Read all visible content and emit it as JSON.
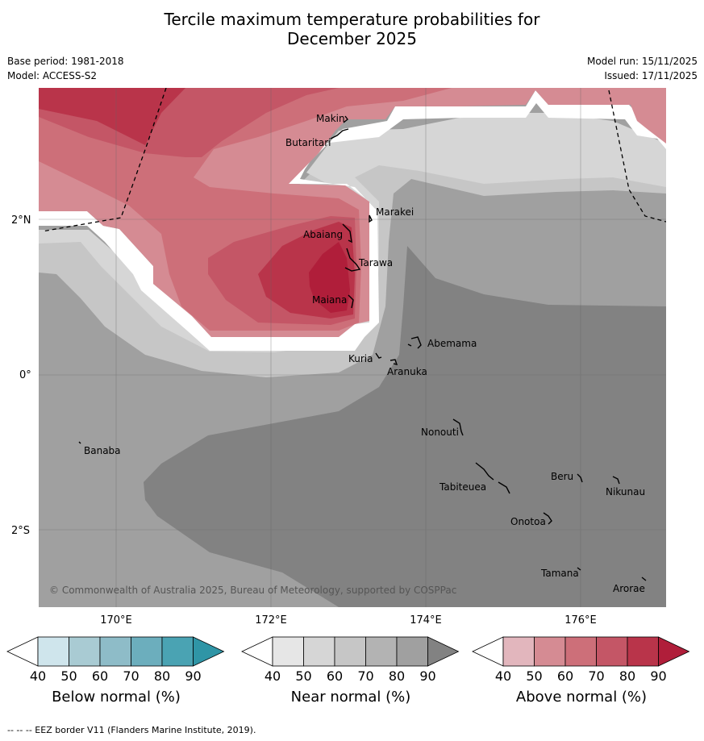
{
  "title": {
    "line1": "Tercile maximum temperature probabilities for",
    "line2": "December 2025"
  },
  "meta": {
    "base_period": "Base period: 1981-2018",
    "model": "Model: ACCESS-S2",
    "model_run": "Model run: 15/11/2025",
    "issued": "Issued: 17/11/2025"
  },
  "map": {
    "longitude_ticks": [
      "170°E",
      "172°E",
      "174°E",
      "176°E"
    ],
    "latitude_ticks": [
      "2°N",
      "0°",
      "2°S"
    ],
    "copyright": "© Commonwealth of Australia 2025, Bureau of Meteorology, supported by COSPPac",
    "islands": {
      "makin": "Makin",
      "butaritari": "Butaritari",
      "marakei": "Marakei",
      "abaiang": "Abaiang",
      "tarawa": "Tarawa",
      "maiana": "Maiana",
      "abemama": "Abemama",
      "kuria": "Kuria",
      "aranuka": "Aranuka",
      "nonouti": "Nonouti",
      "banaba": "Banaba",
      "beru": "Beru",
      "tabiteuea": "Tabiteuea",
      "nikunau": "Nikunau",
      "onotoa": "Onotoa",
      "tamana": "Tamana",
      "arorae": "Arorae"
    }
  },
  "colorbars": {
    "ticks": [
      "40",
      "50",
      "60",
      "70",
      "80",
      "90"
    ],
    "below": {
      "label": "Below normal (%)",
      "colors": [
        "#ffffff",
        "#cfe5ec",
        "#a9cbd3",
        "#8ebcc8",
        "#6caebd",
        "#4aa3b3",
        "#2f95a6"
      ]
    },
    "near": {
      "label": "Near normal (%)",
      "colors": [
        "#ffffff",
        "#e6e6e6",
        "#d6d6d6",
        "#c6c6c6",
        "#b3b3b3",
        "#a0a0a0",
        "#828282"
      ]
    },
    "above": {
      "label": "Above normal (%)",
      "colors": [
        "#ffffff",
        "#e2b6bd",
        "#d58b93",
        "#cd6f79",
        "#c45666",
        "#b9344a",
        "#b01e3a"
      ]
    }
  },
  "footer": "--  --  -- EEZ border V11 (Flanders Marine Institute, 2019)."
}
